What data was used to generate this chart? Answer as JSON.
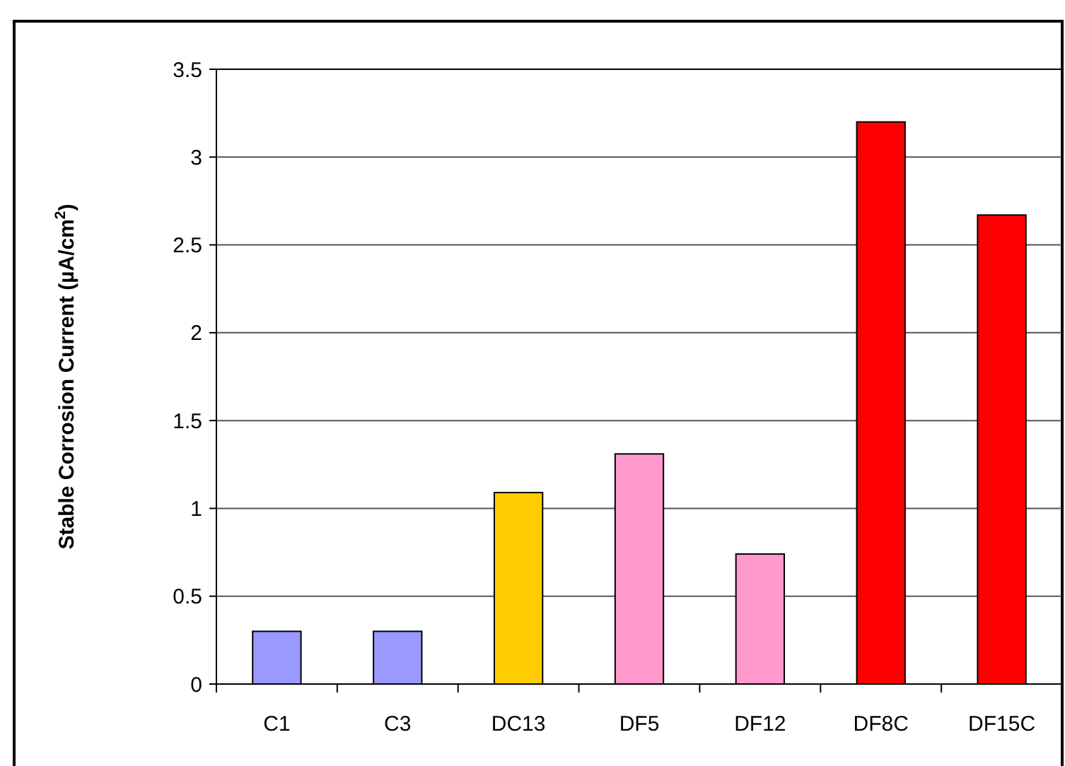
{
  "chart_data": {
    "type": "bar",
    "ylabel": "Stable Corrosion Current (µA/cm$^{2}$)",
    "categories": [
      "C1",
      "C3",
      "DC13",
      "DF5",
      "DF12",
      "DF8C",
      "DF15C"
    ],
    "values": [
      0.3,
      0.3,
      1.09,
      1.31,
      0.74,
      3.2,
      2.67
    ],
    "colors": [
      "#9999ff",
      "#9999ff",
      "#ffcc00",
      "#ff99cc",
      "#ff99cc",
      "#ff0000",
      "#ff0000"
    ],
    "ylim": [
      0,
      3.5
    ],
    "yticks": [
      0,
      0.5,
      1,
      1.5,
      2,
      2.5,
      3,
      3.5
    ],
    "grid": "y"
  }
}
